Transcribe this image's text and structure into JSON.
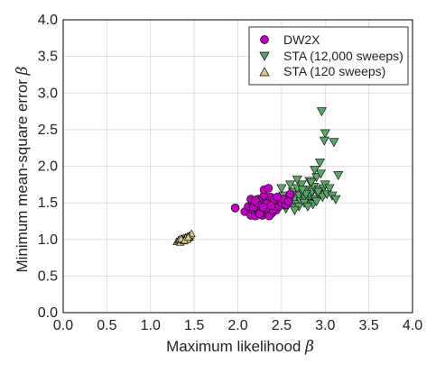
{
  "chart_data": {
    "type": "scatter",
    "xlabel": "Maximum likelihood",
    "ylabel": "Minimum mean-square error",
    "symbol": "β",
    "xlim": [
      0.0,
      4.0
    ],
    "ylim": [
      0.0,
      4.0
    ],
    "xticks": [
      "0.0",
      "0.5",
      "1.0",
      "1.5",
      "2.0",
      "2.5",
      "3.0",
      "3.5",
      "4.0"
    ],
    "yticks": [
      "0.0",
      "0.5",
      "1.0",
      "1.5",
      "2.0",
      "2.5",
      "3.0",
      "3.5",
      "4.0"
    ],
    "grid": true,
    "legend_position": "top-right",
    "series": [
      {
        "name": "DW2X",
        "marker": "circle",
        "color": "#c000c0",
        "x": [
          1.97,
          2.08,
          2.12,
          2.15,
          2.17,
          2.18,
          2.2,
          2.2,
          2.22,
          2.23,
          2.24,
          2.25,
          2.25,
          2.26,
          2.27,
          2.28,
          2.28,
          2.3,
          2.3,
          2.31,
          2.32,
          2.33,
          2.34,
          2.35,
          2.35,
          2.36,
          2.37,
          2.38,
          2.38,
          2.4,
          2.41,
          2.42,
          2.44,
          2.45,
          2.47,
          2.5,
          2.52,
          2.55,
          2.58,
          2.6,
          2.15,
          2.21,
          2.27,
          2.33,
          2.39,
          2.18,
          2.24,
          2.3,
          2.36,
          2.42,
          2.3,
          2.35,
          2.25,
          2.4,
          2.22,
          2.32,
          2.45,
          2.38,
          2.29,
          2.2
        ],
        "y": [
          1.43,
          1.38,
          1.45,
          1.33,
          1.5,
          1.4,
          1.32,
          1.48,
          1.42,
          1.55,
          1.36,
          1.45,
          1.52,
          1.38,
          1.47,
          1.33,
          1.56,
          1.42,
          1.5,
          1.37,
          1.45,
          1.53,
          1.4,
          1.35,
          1.48,
          1.44,
          1.58,
          1.38,
          1.5,
          1.42,
          1.46,
          1.52,
          1.4,
          1.48,
          1.45,
          1.5,
          1.55,
          1.47,
          1.52,
          1.62,
          1.55,
          1.46,
          1.41,
          1.49,
          1.36,
          1.44,
          1.52,
          1.6,
          1.32,
          1.55,
          1.68,
          1.7,
          1.35,
          1.4,
          1.5,
          1.42,
          1.58,
          1.46,
          1.44,
          1.53
        ]
      },
      {
        "name": "STA (12,000 sweeps)",
        "marker": "triangle-down",
        "color": "#5aa66a",
        "x": [
          2.35,
          2.4,
          2.45,
          2.48,
          2.5,
          2.52,
          2.55,
          2.57,
          2.6,
          2.62,
          2.63,
          2.65,
          2.67,
          2.68,
          2.7,
          2.72,
          2.73,
          2.75,
          2.77,
          2.78,
          2.8,
          2.82,
          2.83,
          2.85,
          2.87,
          2.88,
          2.9,
          2.92,
          2.93,
          2.95,
          2.97,
          2.98,
          3.0,
          3.02,
          3.05,
          3.08,
          3.12,
          3.15,
          2.96,
          3.0,
          2.94,
          2.99,
          3.1,
          2.55,
          2.62,
          2.7,
          2.78,
          2.86,
          2.6,
          2.68,
          2.76,
          2.84,
          2.92,
          2.5,
          2.65,
          2.8,
          2.9,
          2.74,
          2.58,
          2.88
        ],
        "y": [
          1.45,
          1.5,
          1.42,
          1.55,
          1.48,
          1.6,
          1.45,
          1.52,
          1.58,
          1.5,
          1.65,
          1.55,
          1.48,
          1.7,
          1.6,
          1.52,
          1.75,
          1.62,
          1.55,
          1.68,
          1.5,
          1.8,
          1.6,
          1.65,
          1.72,
          1.55,
          1.85,
          1.62,
          1.68,
          1.9,
          1.58,
          1.7,
          1.75,
          1.62,
          1.7,
          1.6,
          1.55,
          1.88,
          2.75,
          2.45,
          2.05,
          2.35,
          2.33,
          1.42,
          1.6,
          1.45,
          1.62,
          1.48,
          1.75,
          1.82,
          1.5,
          1.78,
          1.65,
          1.7,
          1.4,
          1.45,
          1.52,
          1.68,
          1.55,
          1.95
        ]
      },
      {
        "name": "STA (120 sweeps)",
        "marker": "triangle-up",
        "color": "#d9c98e",
        "x": [
          1.3,
          1.32,
          1.33,
          1.35,
          1.36,
          1.37,
          1.38,
          1.39,
          1.4,
          1.41,
          1.42,
          1.43,
          1.44,
          1.45,
          1.46,
          1.47,
          1.34,
          1.36,
          1.38,
          1.4,
          1.42,
          1.44,
          1.35,
          1.39,
          1.43
        ],
        "y": [
          0.97,
          0.99,
          1.0,
          0.98,
          1.01,
          0.99,
          1.02,
          1.0,
          1.03,
          1.01,
          1.04,
          1.02,
          1.05,
          1.03,
          1.06,
          1.08,
          0.96,
          1.0,
          0.98,
          1.02,
          1.0,
          1.04,
          1.01,
          0.99,
          1.03
        ]
      }
    ]
  }
}
